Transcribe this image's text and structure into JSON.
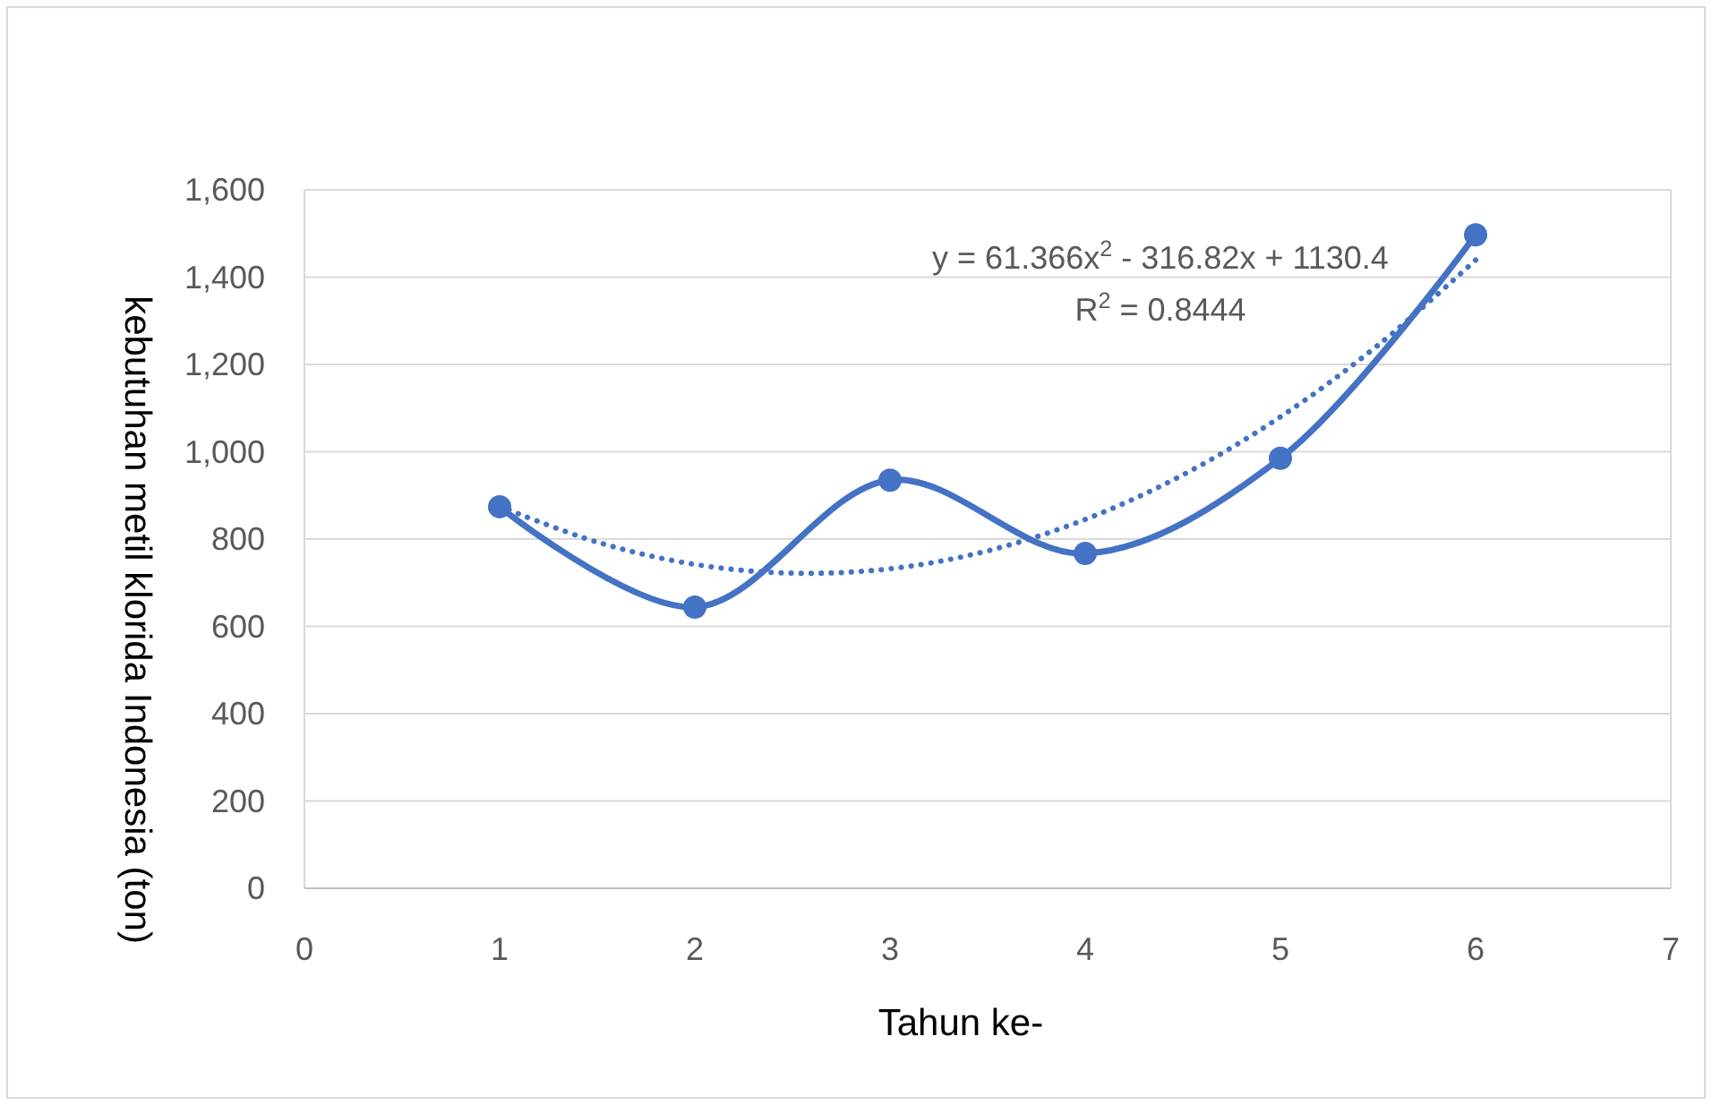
{
  "chart_data": {
    "type": "line",
    "xlabel": "Tahun ke-",
    "ylabel": "kebutuhan metil klorida Indonesia (ton)",
    "xlim": [
      0,
      7
    ],
    "xticks": [
      0,
      1,
      2,
      3,
      4,
      5,
      6,
      7
    ],
    "ylim": [
      0,
      1600
    ],
    "yticks": [
      {
        "value": 0,
        "label": "0"
      },
      {
        "value": 200,
        "label": "200"
      },
      {
        "value": 400,
        "label": "400"
      },
      {
        "value": 600,
        "label": "600"
      },
      {
        "value": 800,
        "label": "800"
      },
      {
        "value": 1000,
        "label": "1,000"
      },
      {
        "value": 1200,
        "label": "1,200"
      },
      {
        "value": 1400,
        "label": "1,400"
      },
      {
        "value": 1600,
        "label": "1,600"
      }
    ],
    "grid": "y",
    "series": [
      {
        "color": "#4472c4",
        "marker": "circle",
        "line_style": "solid",
        "x": [
          1,
          2,
          3,
          4,
          5,
          6
        ],
        "values": [
          874,
          644,
          935,
          767,
          985,
          1497
        ]
      },
      {
        "color": "#4472c4",
        "marker": "none",
        "line_style": "dotted",
        "x": [
          1,
          1.5,
          2,
          2.5,
          3,
          3.5,
          4,
          4.5,
          5,
          5.5,
          6
        ],
        "values": [
          875,
          793,
          742,
          722,
          732,
          773,
          845,
          947,
          1080,
          1244,
          1439
        ]
      }
    ],
    "annotations": [
      "y = 61.366x$^{2}$ - 316.82x + 1130.4",
      "R$^{2}$ = 0.8444"
    ]
  }
}
